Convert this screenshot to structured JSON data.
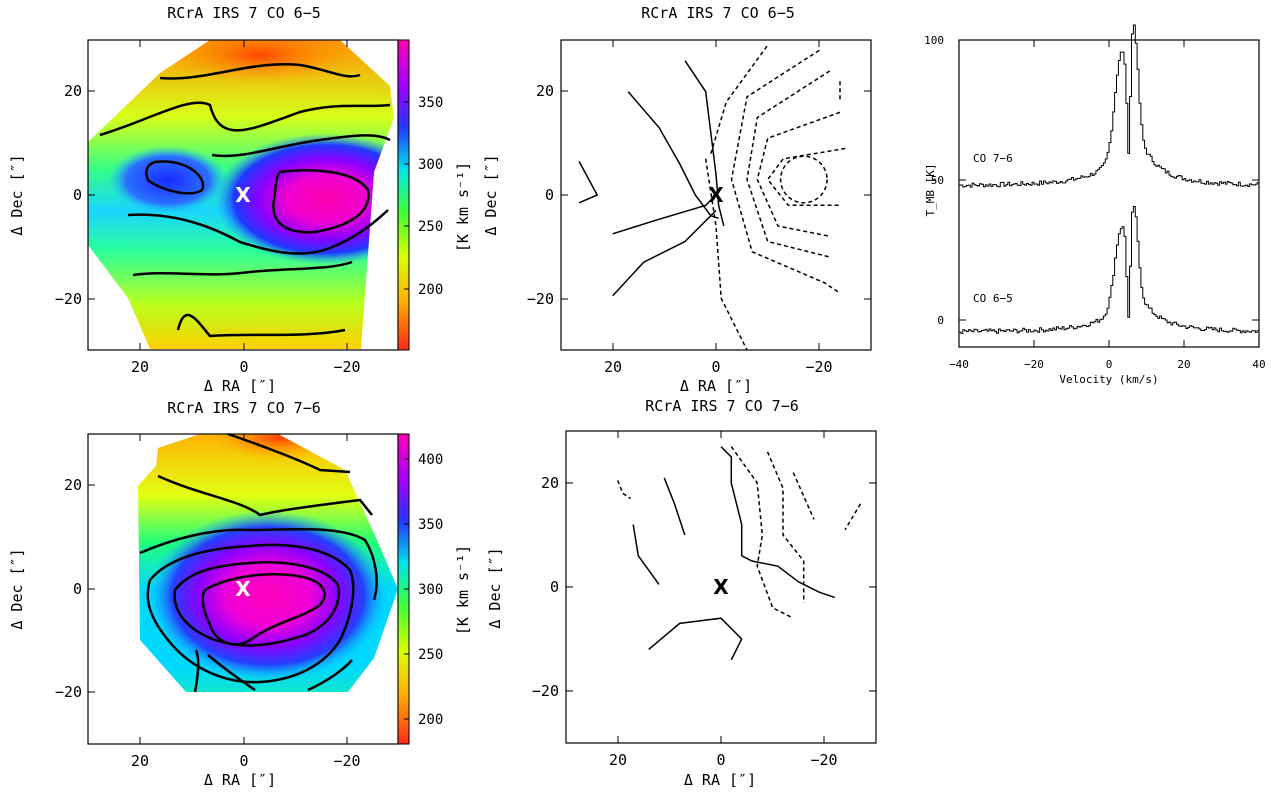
{
  "chart_data": [
    {
      "type": "heatmap",
      "title": "RCrA IRS 7 CO 6−5",
      "xlabel": "Δ RA [″]",
      "ylabel": "Δ Dec [″]",
      "xlim": [
        30,
        -30
      ],
      "ylim": [
        -30,
        30
      ],
      "xticks": [
        "20",
        "0",
        "−20"
      ],
      "yticks": [
        "20",
        "0",
        "−20"
      ],
      "marker": {
        "label": "X",
        "x": 0,
        "y": 0
      },
      "colorbar": {
        "label": "[K km s⁻¹]",
        "range": [
          155,
          390
        ],
        "ticks": [
          "350",
          "300",
          "250",
          "200"
        ]
      },
      "peak": {
        "x": -16,
        "y": 0,
        "value": 390
      }
    },
    {
      "type": "line",
      "title": "RCrA IRS 7 CO 6−5",
      "xlabel": "Δ RA [″]",
      "ylabel": "Δ Dec [″]",
      "xlim": [
        30,
        -30
      ],
      "ylim": [
        -30,
        30
      ],
      "xticks": [
        "20",
        "0",
        "−20"
      ],
      "yticks": [
        "20",
        "0",
        "−20"
      ],
      "marker": {
        "label": "X",
        "x": 0,
        "y": 0
      },
      "series": [
        {
          "style": "solid",
          "points": [
            [
              26.5,
              6.5
            ],
            [
              23,
              0
            ],
            [
              26.5,
              -1.5
            ]
          ]
        },
        {
          "style": "solid",
          "points": [
            [
              17,
              20
            ],
            [
              11,
              13
            ],
            [
              7,
              6
            ],
            [
              4,
              0
            ],
            [
              1,
              -4
            ],
            [
              -0.5,
              -4.5
            ]
          ]
        },
        {
          "style": "solid",
          "points": [
            [
              6,
              26
            ],
            [
              2,
              20
            ],
            [
              0,
              4
            ],
            [
              -0.5,
              -2
            ],
            [
              -1.5,
              -6
            ]
          ]
        },
        {
          "style": "solid",
          "points": [
            [
              20,
              -7.5
            ],
            [
              12,
              -5
            ],
            [
              2,
              -2
            ],
            [
              0,
              0
            ]
          ]
        },
        {
          "style": "solid",
          "points": [
            [
              20,
              -19.5
            ],
            [
              14,
              -13
            ],
            [
              6,
              -9
            ],
            [
              0,
              -3
            ]
          ]
        },
        {
          "style": "dashed",
          "points": [
            [
              2,
              7
            ],
            [
              0,
              -6
            ],
            [
              -1,
              -20
            ],
            [
              -6,
              -30
            ]
          ]
        },
        {
          "style": "dashed",
          "points": [
            [
              1,
              8
            ],
            [
              -2,
              18
            ],
            [
              -10,
              29
            ]
          ]
        },
        {
          "style": "dashed",
          "points": [
            [
              -20,
              28
            ],
            [
              -6,
              19
            ],
            [
              -3,
              3
            ],
            [
              -7,
              -11
            ],
            [
              -21,
              -17
            ],
            [
              -24,
              -19
            ]
          ]
        },
        {
          "style": "dashed",
          "points": [
            [
              -22,
              24
            ],
            [
              -8,
              15
            ],
            [
              -6,
              3
            ],
            [
              -10,
              -9
            ],
            [
              -22,
              -12
            ]
          ]
        },
        {
          "style": "dashed",
          "points": [
            [
              -24,
              16
            ],
            [
              -10,
              11
            ],
            [
              -8,
              3
            ],
            [
              -12,
              -6
            ],
            [
              -22,
              -8
            ]
          ]
        },
        {
          "style": "dashed",
          "points": [
            [
              -25,
              9
            ],
            [
              -13,
              7
            ],
            [
              -10,
              3
            ],
            [
              -14,
              -2
            ],
            [
              -24,
              -2
            ]
          ]
        },
        {
          "style": "dashed",
          "ellipse": {
            "cx": -17,
            "cy": 3,
            "rx": 4.5,
            "ry": 4.5
          }
        },
        {
          "style": "dashed",
          "points": [
            [
              -24,
              22
            ],
            [
              -24,
              18
            ]
          ]
        }
      ]
    },
    {
      "type": "line",
      "title": "",
      "xlabel": "Velocity (km/s)",
      "ylabel": "T_MB [K]",
      "xlim": [
        -40,
        40
      ],
      "ylim": [
        -5,
        100
      ],
      "xticks": [
        "−40",
        "−20",
        "0",
        "20",
        "40"
      ],
      "yticks": [
        "100",
        "50",
        "0"
      ],
      "annotations": [
        "CO 7−6",
        "CO 6−5"
      ],
      "series": [
        {
          "name": "CO 7−6",
          "baseline": 50,
          "peaks": [
            {
              "v": 3,
              "T": 83
            },
            {
              "v": 6.5,
              "T": 96
            }
          ],
          "dip": {
            "v": 5,
            "T": 62
          }
        },
        {
          "name": "CO 6−5",
          "baseline": 0,
          "peaks": [
            {
              "v": 3,
              "T": 26
            },
            {
              "v": 6.5,
              "T": 36
            }
          ],
          "dip": {
            "v": 5,
            "T": 5
          }
        }
      ]
    },
    {
      "type": "heatmap",
      "title": "RCrA IRS 7 CO 7−6",
      "xlabel": "Δ RA [″]",
      "ylabel": "Δ Dec [″]",
      "xlim": [
        30,
        -30
      ],
      "ylim": [
        -30,
        30
      ],
      "xticks": [
        "20",
        "0",
        "−20"
      ],
      "yticks": [
        "20",
        "0",
        "−20"
      ],
      "marker": {
        "label": "X",
        "x": 0,
        "y": 0
      },
      "colorbar": {
        "label": "[K km s⁻¹]",
        "range": [
          180,
          420
        ],
        "ticks": [
          "400",
          "350",
          "300",
          "250",
          "200"
        ]
      },
      "peak": {
        "x": -7,
        "y": -2,
        "value": 420
      }
    },
    {
      "type": "line",
      "title": "RCrA IRS 7 CO 7−6",
      "xlabel": "Δ RA [″]",
      "ylabel": "Δ Dec [″]",
      "xlim": [
        30,
        -30
      ],
      "ylim": [
        -30,
        30
      ],
      "xticks": [
        "20",
        "0",
        "−20"
      ],
      "yticks": [
        "20",
        "0",
        "−20"
      ],
      "marker": {
        "label": "X",
        "x": 0,
        "y": 0
      },
      "series": [
        {
          "style": "dashed",
          "points": [
            [
              20,
              20.5
            ],
            [
              19,
              18
            ],
            [
              17.5,
              17
            ]
          ]
        },
        {
          "style": "solid",
          "points": [
            [
              17,
              12
            ],
            [
              16,
              6
            ],
            [
              12,
              0.5
            ]
          ]
        },
        {
          "style": "solid",
          "points": [
            [
              11,
              21
            ],
            [
              9,
              16
            ],
            [
              7,
              10
            ]
          ]
        },
        {
          "style": "solid",
          "points": [
            [
              0,
              27
            ],
            [
              -2,
              25
            ],
            [
              -2,
              20
            ],
            [
              -4,
              12
            ],
            [
              -4,
              6
            ]
          ]
        },
        {
          "style": "solid",
          "points": [
            [
              -4,
              6
            ],
            [
              -6,
              5
            ],
            [
              -11,
              4
            ],
            [
              -15,
              1
            ]
          ]
        },
        {
          "style": "solid",
          "points": [
            [
              -15,
              1
            ],
            [
              -19,
              -1
            ],
            [
              -22,
              -2
            ]
          ]
        },
        {
          "style": "solid",
          "points": [
            [
              14,
              -12
            ],
            [
              8,
              -7
            ],
            [
              0,
              -6
            ],
            [
              -4,
              -10
            ],
            [
              -2,
              -14
            ]
          ]
        },
        {
          "style": "dashed",
          "points": [
            [
              -2,
              27
            ],
            [
              -7,
              20
            ],
            [
              -8,
              10
            ],
            [
              -7,
              4
            ],
            [
              -10,
              -4
            ],
            [
              -14,
              -6
            ]
          ]
        },
        {
          "style": "dashed",
          "points": [
            [
              -9,
              26
            ],
            [
              -12,
              19
            ],
            [
              -12,
              10
            ],
            [
              -16,
              5
            ],
            [
              -16,
              -3
            ]
          ]
        },
        {
          "style": "dashed",
          "points": [
            [
              -14,
              22
            ],
            [
              -18,
              13
            ]
          ]
        },
        {
          "style": "dashed",
          "points": [
            [
              -27,
              16
            ],
            [
              -24,
              11
            ]
          ]
        }
      ]
    }
  ]
}
